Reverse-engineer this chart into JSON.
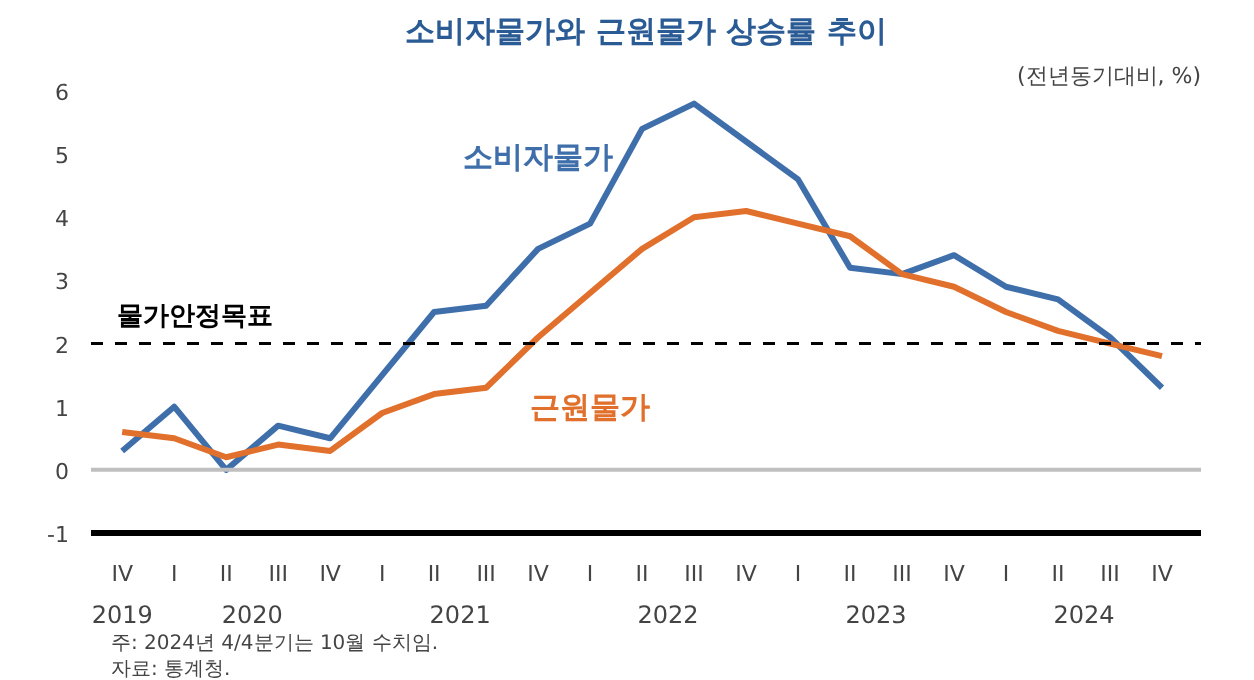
{
  "chart_data": {
    "type": "line",
    "title": "소비자물가와 근원물가 상승률 추이",
    "ylabel": "(전년동기대비, %)",
    "annotations": [
      "2019",
      "2020",
      "2021",
      "2022",
      "2023",
      "2024",
      "주: 2024년 4/4분기는 10월 수치임.",
      "자료: 통계청."
    ],
    "categories": [
      "IV",
      "I",
      "II",
      "III",
      "IV",
      "I",
      "II",
      "III",
      "IV",
      "I",
      "II",
      "III",
      "IV",
      "I",
      "II",
      "III",
      "IV",
      "I",
      "II",
      "III",
      "IV"
    ],
    "series": [
      {
        "name": "소비자물가",
        "color": "#3f6faa",
        "values": [
          0.3,
          1.0,
          0.0,
          0.7,
          0.5,
          1.5,
          2.5,
          2.6,
          3.5,
          3.9,
          5.4,
          5.8,
          5.2,
          4.6,
          3.2,
          3.1,
          3.4,
          2.9,
          2.7,
          2.1,
          1.3
        ]
      },
      {
        "name": "근원물가",
        "color": "#e0702c",
        "values": [
          0.6,
          0.5,
          0.2,
          0.4,
          0.3,
          0.9,
          1.2,
          1.3,
          2.1,
          2.8,
          3.5,
          4.0,
          4.1,
          3.9,
          3.7,
          3.1,
          2.9,
          2.5,
          2.2,
          2.0,
          1.8
        ]
      }
    ],
    "ylim": [
      -1,
      6
    ],
    "yticks": [
      -1,
      0,
      1,
      2,
      3,
      4,
      5,
      6
    ],
    "ref_lines": [
      {
        "axis": "y",
        "value": 2,
        "label": "물가안정목표",
        "color": "#000000",
        "line_style": "dashed"
      },
      {
        "axis": "y",
        "value": 0,
        "color": "#bfbfbf",
        "line_style": "solid"
      }
    ],
    "grid": false,
    "marker": "none",
    "line_style": "solid"
  }
}
